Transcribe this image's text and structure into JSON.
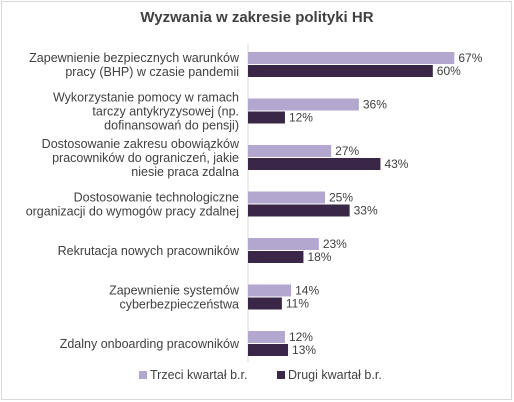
{
  "chart_data": {
    "type": "bar",
    "orientation": "horizontal",
    "title": "Wyzwania w zakresie polityki HR",
    "categories": [
      [
        "Zapewnienie bezpiecznych warunków",
        "pracy (BHP) w czasie pandemii"
      ],
      [
        "Wykorzystanie pomocy w ramach",
        "tarczy antykryzysowej (np.",
        "dofinansowań do pensji)"
      ],
      [
        "Dostosowanie zakresu obowiązków",
        "pracowników do ograniczeń, jakie",
        "niesie praca zdalna"
      ],
      [
        "Dostosowanie technologiczne",
        "organizacji do wymogów pracy zdalnej"
      ],
      [
        "Rekrutacja nowych pracowników"
      ],
      [
        "Zapewnienie systemów",
        "cyberbezpieczeństwa"
      ],
      [
        "Zdalny onboarding pracowników"
      ]
    ],
    "series": [
      {
        "name": "Trzeci kwartał b.r.",
        "color": "#b4a7cf",
        "values": [
          67,
          36,
          27,
          25,
          23,
          14,
          12
        ],
        "labels": [
          "67%",
          "36%",
          "27%",
          "25%",
          "23%",
          "14%",
          "12%"
        ]
      },
      {
        "name": "Drugi kwartał b.r.",
        "color": "#3a2748",
        "values": [
          60,
          12,
          43,
          33,
          18,
          11,
          13
        ],
        "labels": [
          "60%",
          "12%",
          "43%",
          "33%",
          "18%",
          "11%",
          "13%"
        ]
      }
    ],
    "xlim": [
      0,
      100
    ],
    "grid": false,
    "legend": "bottom"
  }
}
